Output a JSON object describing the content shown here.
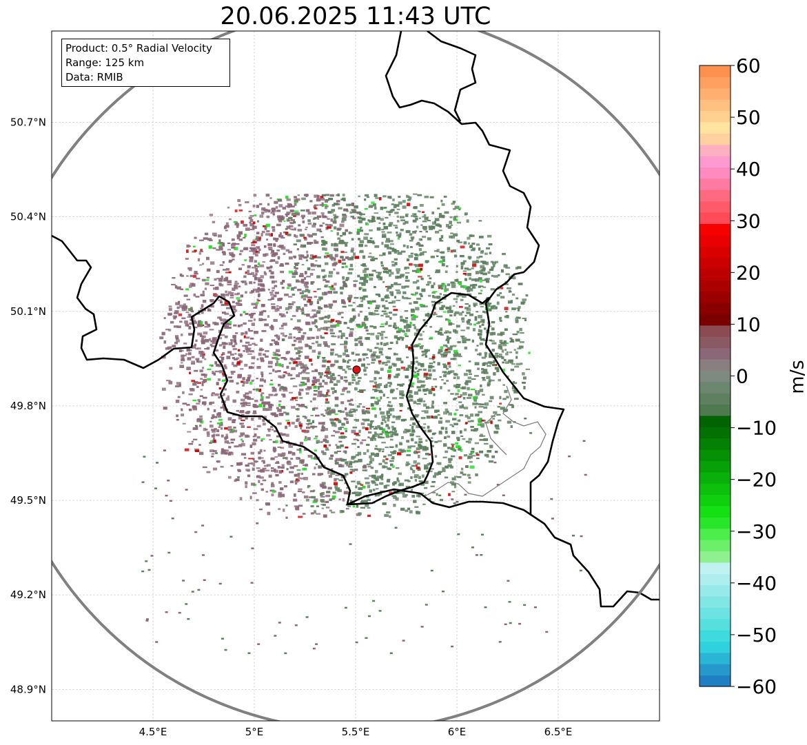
{
  "title": "20.06.2025 11:43 UTC",
  "info": {
    "product": "Product: 0.5° Radial Velocity",
    "range": "Range: 125 km",
    "data": "Data: RMIB"
  },
  "map": {
    "lon_range": [
      4.0,
      7.0
    ],
    "lat_range": [
      48.8,
      50.99
    ],
    "lon_ticks": [
      {
        "value": 4.5,
        "label": "4.5°E"
      },
      {
        "value": 5.0,
        "label": "5°E"
      },
      {
        "value": 5.5,
        "label": "5.5°E"
      },
      {
        "value": 6.0,
        "label": "6°E"
      },
      {
        "value": 6.5,
        "label": "6.5°E"
      }
    ],
    "lat_ticks": [
      {
        "value": 48.9,
        "label": "48.9°N"
      },
      {
        "value": 49.2,
        "label": "49.2°N"
      },
      {
        "value": 49.5,
        "label": "49.5°N"
      },
      {
        "value": 49.8,
        "label": "49.8°N"
      },
      {
        "value": 50.1,
        "label": "50.1°N"
      },
      {
        "value": 50.4,
        "label": "50.4°N"
      },
      {
        "value": 50.7,
        "label": "50.7°N"
      }
    ],
    "radar_site": {
      "lon": 5.505,
      "lat": 49.915,
      "color": "#e01010"
    },
    "range_ring_color": "#808080",
    "border_color": "#000000",
    "region_border_color": "#808080",
    "grid": true
  },
  "colorbar": {
    "label": "m/s",
    "min": -60,
    "max": 60,
    "ticks": [
      {
        "value": 60,
        "label": "60"
      },
      {
        "value": 50,
        "label": "50"
      },
      {
        "value": 40,
        "label": "40"
      },
      {
        "value": 30,
        "label": "30"
      },
      {
        "value": 20,
        "label": "20"
      },
      {
        "value": 10,
        "label": "10"
      },
      {
        "value": 0,
        "label": "0"
      },
      {
        "value": -10,
        "label": "−10"
      },
      {
        "value": -20,
        "label": "−20"
      },
      {
        "value": -30,
        "label": "−30"
      },
      {
        "value": -40,
        "label": "−40"
      },
      {
        "value": -50,
        "label": "−50"
      },
      {
        "value": -60,
        "label": "−60"
      }
    ],
    "colors": [
      "#1f7fc2",
      "#2598cc",
      "#2ab4d6",
      "#2fd2dc",
      "#3ddbdd",
      "#55e0de",
      "#6be3e2",
      "#82e6e5",
      "#98eaea",
      "#aeeeee",
      "#bff2f0",
      "#8ef08e",
      "#6cf06c",
      "#4bee4b",
      "#2ae62a",
      "#14e014",
      "#0fd00f",
      "#0cc00c",
      "#0ab00a",
      "#08a008",
      "#069006",
      "#048004",
      "#037003",
      "#006400",
      "#4f7a4f",
      "#5e8060",
      "#6d8670",
      "#7e8a80",
      "#8a7e80",
      "#8a6878",
      "#8a5a64",
      "#8a4c52",
      "#7a0000",
      "#8a0000",
      "#9a0000",
      "#aa0000",
      "#ba0000",
      "#ca0000",
      "#da0000",
      "#ea0000",
      "#f70000",
      "#ff4a5a",
      "#ff5a6a",
      "#ff6a80",
      "#ff7aa0",
      "#ff8ac0",
      "#ff9ad0",
      "#ffb0c0",
      "#ffd0a0",
      "#ffe4a0",
      "#ffd090",
      "#ffc080",
      "#ffb070",
      "#ffa060",
      "#ff9050"
    ]
  },
  "velocity_field": {
    "inbound_color": "#5e8060",
    "outbound_color": "#8a6878",
    "strong_inbound_color": "#1ee01e",
    "strong_outbound_color": "#d00000"
  }
}
